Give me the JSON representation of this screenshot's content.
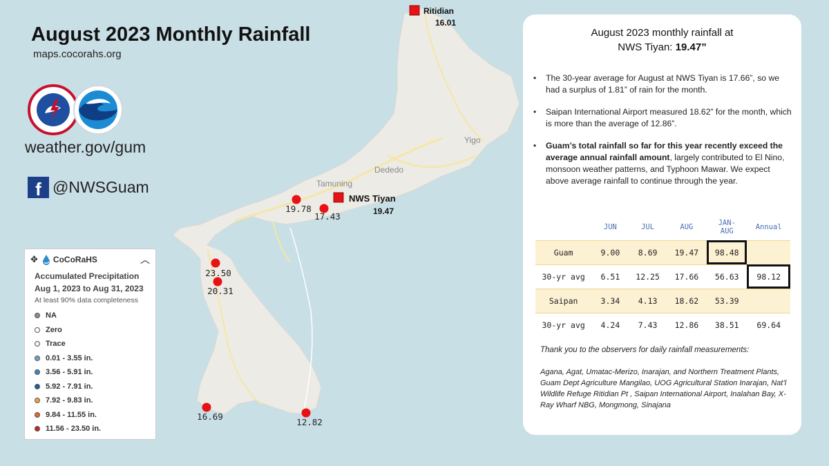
{
  "header": {
    "title": "August 2023 Monthly Rainfall",
    "subtitle": "maps.cocorahs.org",
    "website": "weather.gov/gum",
    "social_handle": "@NWSGuam",
    "facebook_glyph": "f"
  },
  "map": {
    "place_labels": [
      "Yigo",
      "Dededo",
      "Tamuning"
    ],
    "stations": [
      {
        "name": "Ritidian",
        "value": "16.01",
        "marker": "square"
      },
      {
        "name": "NWS Tiyan",
        "value": "19.47",
        "marker": "square"
      },
      {
        "name": "",
        "value": "19.78",
        "marker": "circle"
      },
      {
        "name": "",
        "value": "17.43",
        "marker": "circle"
      },
      {
        "name": "",
        "value": "23.50",
        "marker": "circle"
      },
      {
        "name": "",
        "value": "20.31",
        "marker": "circle"
      },
      {
        "name": "",
        "value": "16.69",
        "marker": "circle"
      },
      {
        "name": "",
        "value": "12.82",
        "marker": "circle"
      }
    ],
    "marker_color": "#e81216"
  },
  "legend": {
    "name": "CoCoRaHS",
    "title_line1": "Accumulated Precipitation",
    "title_line2": "Aug 1, 2023 to Aug 31, 2023",
    "note": "At least 90% data completeness",
    "move_glyph": "✥",
    "collapse_glyph": "︿",
    "items": [
      {
        "label": "NA",
        "color": "#8a8f95"
      },
      {
        "label": "Zero",
        "color": "#ffffff"
      },
      {
        "label": "Trace",
        "color": "#f4f4f4"
      },
      {
        "label": "0.01 - 3.55 in.",
        "color": "#6fa3c7"
      },
      {
        "label": "3.56 - 5.91 in.",
        "color": "#3a88c3"
      },
      {
        "label": "5.92 - 7.91 in.",
        "color": "#1f5f9c"
      },
      {
        "label": "7.92 - 9.83 in.",
        "color": "#f2a33a"
      },
      {
        "label": "9.84 - 11.55 in.",
        "color": "#e8692b"
      },
      {
        "label": "11.56 - 23.50 in.",
        "color": "#d81b1b"
      }
    ]
  },
  "panel": {
    "heading_line1": "August 2023 monthly rainfall at",
    "heading_line2_prefix": "NWS Tiyan: ",
    "heading_value": "19.47”",
    "bullet_glyph": "•",
    "bullet1": "The 30-year average for August at NWS Tiyan is 17.66”, so we had a surplus of 1.81” of rain for the month.",
    "bullet2": "Saipan International Airport measured 18.62” for the month,   which is more than the average of 12.86”.",
    "bullet3_bold": "Guam’s total rainfall so far for this year recently exceed the average annual rainfall amount",
    "bullet3_rest": ", largely contributed to El Nino, monsoon weather patterns, and Typhoon Mawar. We expect above average rainfall to continue through the year.",
    "table": {
      "headers": [
        "",
        "JUN",
        "JUL",
        "AUG",
        "JAN-\nAUG",
        "Annual"
      ],
      "rows": [
        [
          "Guam",
          "9.00",
          "8.69",
          "19.47",
          "98.48",
          ""
        ],
        [
          "30-yr avg",
          "6.51",
          "12.25",
          "17.66",
          "56.63",
          "98.12"
        ],
        [
          "Saipan",
          "3.34",
          "4.13",
          "18.62",
          "53.39",
          ""
        ],
        [
          "30-yr avg",
          "4.24",
          "7.43",
          "12.86",
          "38.51",
          "69.64"
        ]
      ]
    },
    "thanks_line": "Thank you to the observers for daily rainfall measurements:",
    "observers": "Agana, Agat, Umatac-Merizo, Inarajan, and Northern Treatment Plants, Guam Dept Agriculture Mangilao, UOG Agricultural Station Inarajan, Nat’l Wildlife Refuge Ritidian Pt , Saipan International Airport, Inalahan Bay, X-Ray Wharf NBG, Mongmong, Sinajana"
  }
}
